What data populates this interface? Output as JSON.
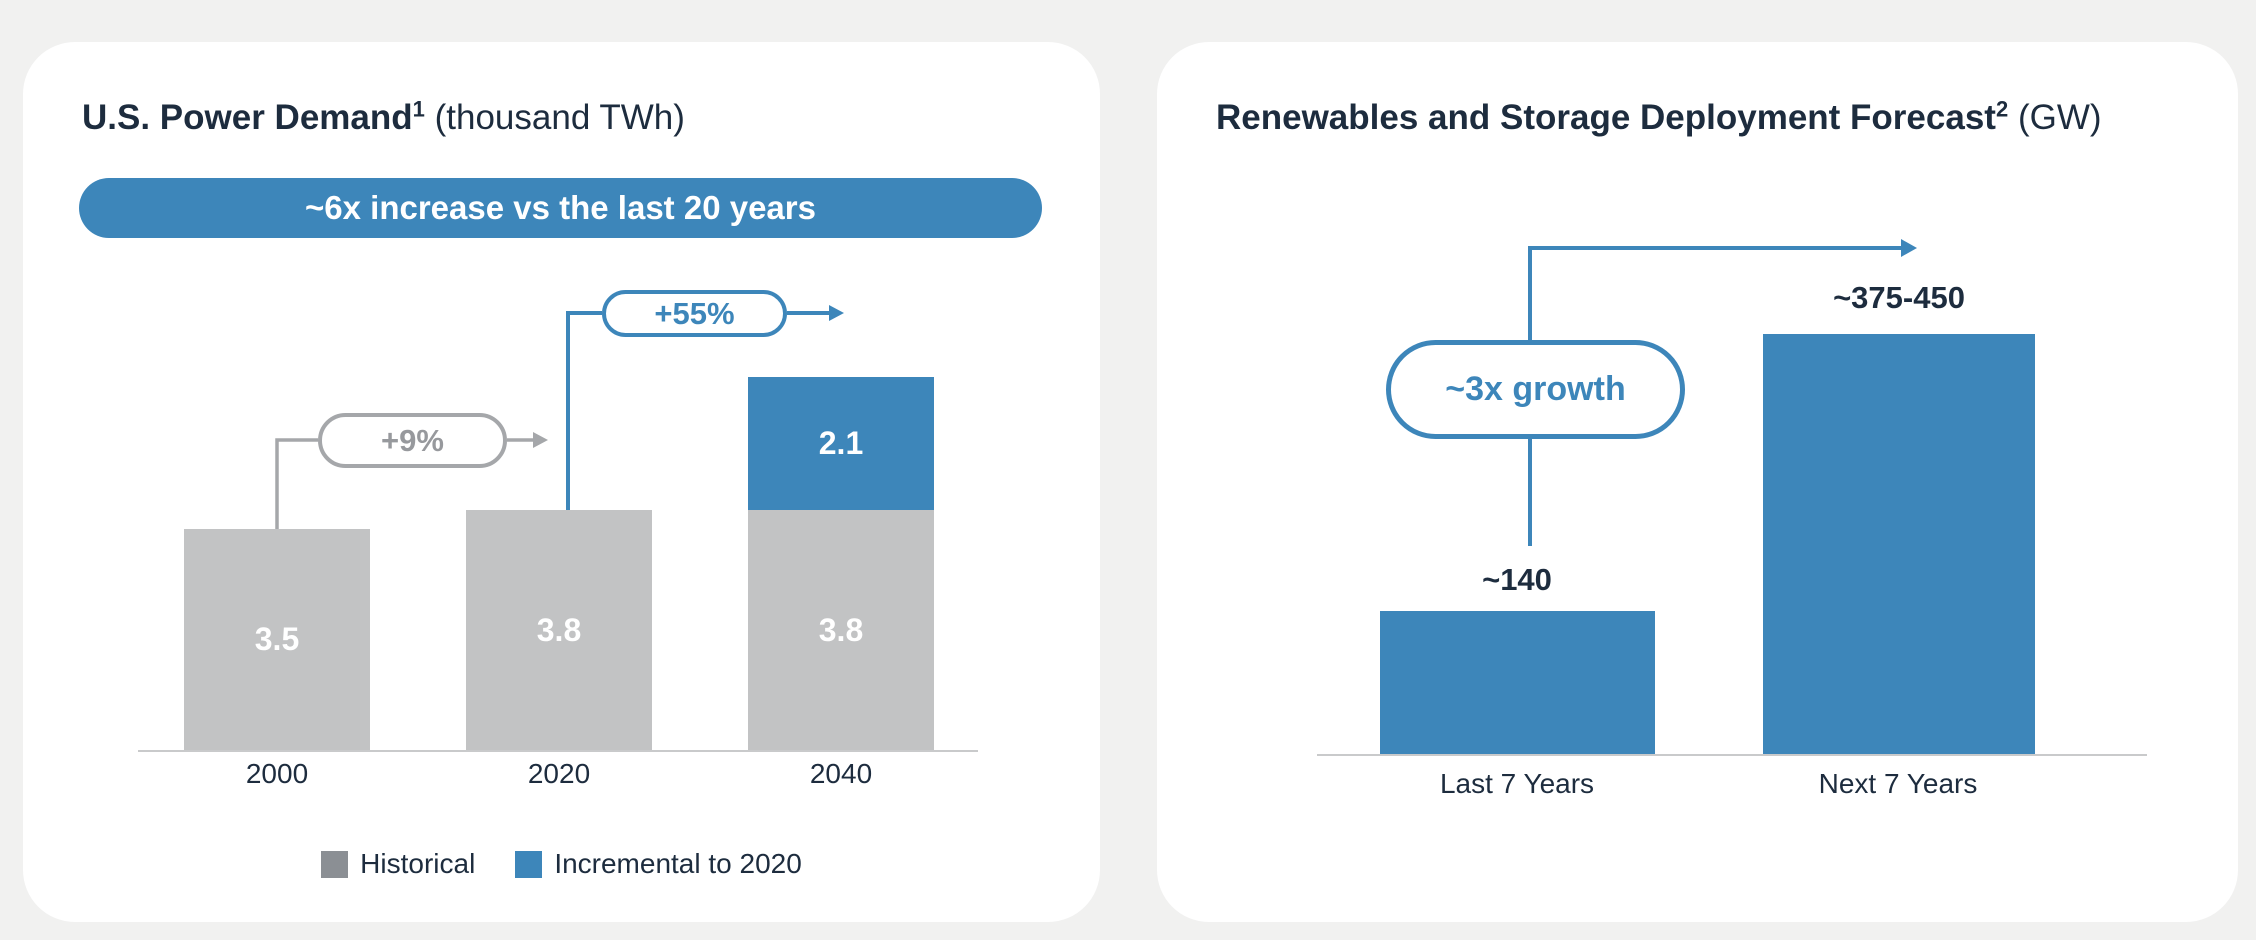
{
  "colors": {
    "background": "#f1f1f0",
    "card": "#ffffff",
    "navy": "#1d2c3e",
    "accent_blue": "#3d86ba",
    "bar_gray": "#c2c3c4",
    "legend_gray": "#8b8f94",
    "annotation_gray": "#a5a7aa",
    "annotation_gray_text": "#97999d",
    "axis_gray": "#c9cacb"
  },
  "chart_data": [
    {
      "type": "bar",
      "stacked": true,
      "title": "U.S. Power Demand",
      "title_superscript": "1",
      "unit_label": "(thousand TWh)",
      "banner": "~6x increase vs the last 20 years",
      "categories": [
        "2000",
        "2020",
        "2040"
      ],
      "series": [
        {
          "name": "Historical",
          "color": "#c2c3c4",
          "legend_color": "#8b8f94",
          "values": [
            3.5,
            3.8,
            3.8
          ],
          "display": [
            "3.5",
            "3.8",
            "3.8"
          ]
        },
        {
          "name": "Incremental to 2020",
          "color": "#3d86ba",
          "legend_color": "#3d86ba",
          "values": [
            0,
            0,
            2.1
          ],
          "display": [
            "",
            "",
            "2.1"
          ]
        }
      ],
      "annotations": [
        {
          "label": "+9%",
          "from": "2000",
          "to": "2020",
          "color": "#a5a7aa"
        },
        {
          "label": "+55%",
          "from": "2020",
          "to": "2040",
          "color": "#3d86ba"
        }
      ],
      "ylim": [
        0,
        6.5
      ],
      "grid": false,
      "legend_position": "bottom"
    },
    {
      "type": "bar",
      "title": "Renewables and Storage Deployment Forecast",
      "title_superscript": "2",
      "unit_label": "(GW)",
      "categories": [
        "Last 7 Years",
        "Next 7 Years"
      ],
      "values": [
        140,
        412
      ],
      "value_labels": [
        "~140",
        "~375-450"
      ],
      "annotations": [
        {
          "label": "~3x growth",
          "from": "Last 7 Years",
          "to": "Next 7 Years",
          "color": "#3d86ba"
        }
      ],
      "ylim": [
        0,
        460
      ],
      "grid": false,
      "legend_position": "none"
    }
  ]
}
